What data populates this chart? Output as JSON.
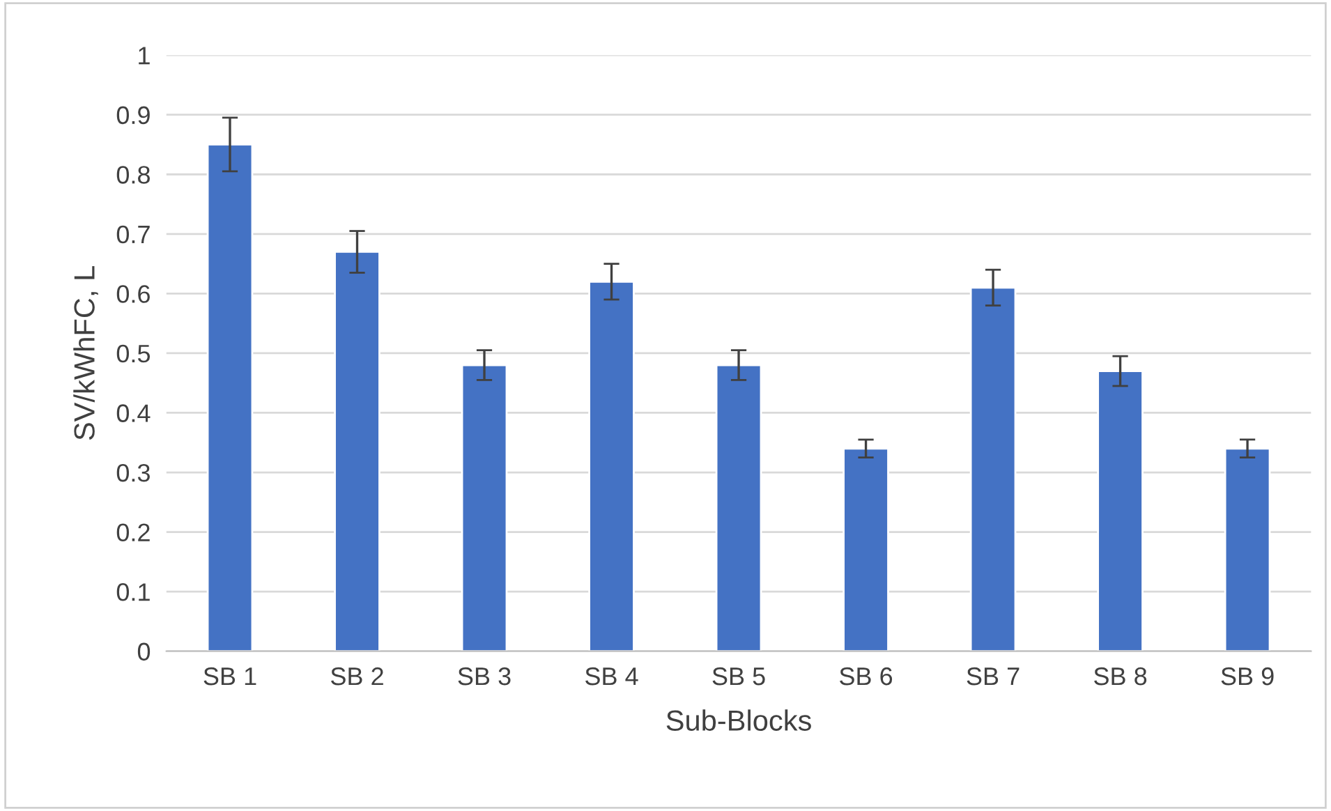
{
  "chart_data": {
    "type": "bar",
    "xlabel": "Sub-Blocks",
    "ylabel": "SV/kWhFC, L",
    "categories": [
      "SB 1",
      "SB 2",
      "SB 3",
      "SB 4",
      "SB 5",
      "SB 6",
      "SB 7",
      "SB 8",
      "SB 9"
    ],
    "values": [
      0.85,
      0.67,
      0.48,
      0.62,
      0.48,
      0.34,
      0.61,
      0.47,
      0.34
    ],
    "errors": [
      0.045,
      0.035,
      0.025,
      0.03,
      0.025,
      0.015,
      0.03,
      0.025,
      0.015
    ],
    "color": "#4472c4",
    "ylim": [
      0,
      1
    ],
    "yticks": [
      0,
      {
        "value": 0.1,
        "label": "0.1"
      },
      {
        "value": 0.2,
        "label": "0.2"
      },
      {
        "value": 0.3,
        "label": "0.3"
      },
      {
        "value": 0.4,
        "label": "0.4"
      },
      {
        "value": 0.5,
        "label": "0.5"
      },
      {
        "value": 0.6,
        "label": "0.6"
      },
      {
        "value": 0.7,
        "label": "0.7"
      },
      {
        "value": 0.8,
        "label": "0.8"
      },
      {
        "value": 0.9,
        "label": "0.9"
      },
      1
    ],
    "grid": "y"
  }
}
